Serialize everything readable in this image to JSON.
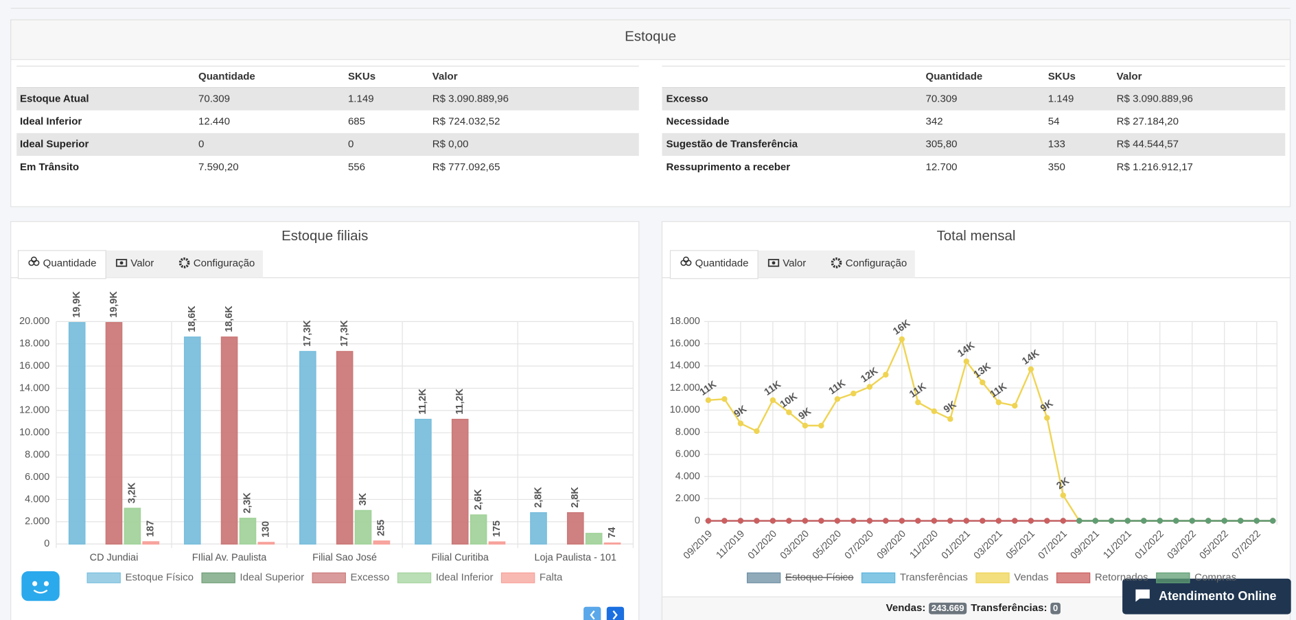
{
  "estoque": {
    "title": "Estoque",
    "tables": [
      {
        "columns": [
          "Quantidade",
          "SKUs",
          "Valor"
        ],
        "rows": [
          [
            "Estoque Atual",
            "70.309",
            "1.149",
            "R$ 3.090.889,96"
          ],
          [
            "Ideal Inferior",
            "12.440",
            "685",
            "R$ 724.032,52"
          ],
          [
            "Ideal Superior",
            "0",
            "0",
            "R$ 0,00"
          ],
          [
            "Em Trânsito",
            "7.590,20",
            "556",
            "R$ 777.092,65"
          ]
        ]
      },
      {
        "columns": [
          "Quantidade",
          "SKUs",
          "Valor"
        ],
        "rows": [
          [
            "Excesso",
            "70.309",
            "1.149",
            "R$ 3.090.889,96"
          ],
          [
            "Necessidade",
            "342",
            "54",
            "R$ 27.184,20"
          ],
          [
            "Sugestão de Transferência",
            "305,80",
            "133",
            "R$ 44.544,57"
          ],
          [
            "Ressuprimento a receber",
            "12.700",
            "350",
            "R$ 1.216.912,17"
          ]
        ]
      }
    ]
  },
  "panels": [
    {
      "title": "Estoque filiais",
      "tabs": [
        "Quantidade",
        "Valor",
        "Configuração"
      ]
    },
    {
      "title": "Total mensal",
      "tabs": [
        "Quantidade",
        "Valor",
        "Configuração"
      ]
    }
  ],
  "chart_data": [
    {
      "type": "bar",
      "categories": [
        "CD Jundiai",
        "FIlial Av. Paulista",
        "Filial Sao José",
        "Filial Curitiba",
        "Loja Paulista - 101"
      ],
      "series": [
        {
          "name": "Estoque Físico",
          "color": "#7bbfdd",
          "values": [
            19900,
            18600,
            17300,
            11200,
            2800
          ],
          "value_labels": [
            "19,9K",
            "18,6K",
            "17,3K",
            "11,2K",
            "2,8K"
          ]
        },
        {
          "name": "Ideal Superior",
          "color": "#6e9d75",
          "values": [
            0,
            0,
            0,
            0,
            0
          ]
        },
        {
          "name": "Excesso",
          "color": "#cc7a7a",
          "values": [
            19900,
            18600,
            17300,
            11200,
            2800
          ],
          "value_labels": [
            "19,9K",
            "18,6K",
            "17,3K",
            "11,2K",
            "2,8K"
          ]
        },
        {
          "name": "Ideal Inferior",
          "color": "#a3d39c",
          "values": [
            3200,
            2300,
            3000,
            2600,
            942
          ],
          "value_labels": [
            "3,2K",
            "2,3K",
            "3K",
            "2,6K",
            null
          ]
        },
        {
          "name": "Falta",
          "color": "#f7a19a",
          "values": [
            187,
            130,
            255,
            175,
            74
          ]
        }
      ],
      "ylim": [
        0,
        20000
      ],
      "yticks": [
        0,
        {
          "value": 2000,
          "label": "2.000"
        },
        {
          "value": 4000,
          "label": "4.000"
        },
        {
          "value": 6000,
          "label": "6.000"
        },
        {
          "value": 8000,
          "label": "8.000"
        },
        {
          "value": 10000,
          "label": "10.000"
        },
        {
          "value": 12000,
          "label": "12.000"
        },
        {
          "value": 14000,
          "label": "14.000"
        },
        {
          "value": 16000,
          "label": "16.000"
        },
        {
          "value": 18000,
          "label": "18.000"
        },
        {
          "value": 20000,
          "label": "20.000"
        }
      ],
      "grid": true
    },
    {
      "type": "line",
      "categories": [
        "09/2019",
        null,
        "11/2019",
        null,
        "01/2020",
        null,
        "03/2020",
        null,
        "05/2020",
        null,
        "07/2020",
        null,
        "09/2020",
        null,
        "11/2020",
        null,
        "01/2021",
        null,
        "03/2021",
        null,
        "05/2021",
        null,
        "07/2021",
        null,
        "09/2021",
        null,
        "11/2021",
        null,
        "01/2022",
        null,
        "03/2022",
        null,
        "05/2022",
        null,
        "07/2022",
        null
      ],
      "series": [
        {
          "name": "Estoque Físico",
          "color": "#6c8ea3",
          "hidden": true,
          "values": [
            null,
            null,
            null,
            null,
            null,
            null,
            null,
            null,
            null,
            null,
            null,
            null,
            null,
            null,
            null,
            null,
            null,
            null,
            null,
            null,
            null,
            null,
            null,
            null,
            null,
            null,
            null,
            null,
            null,
            null,
            null,
            null,
            null,
            null,
            null,
            null
          ]
        },
        {
          "name": "Transferências",
          "color": "#5ab4dc",
          "values": [
            0,
            0,
            0,
            0,
            0,
            0,
            0,
            0,
            0,
            0,
            0,
            0,
            0,
            0,
            0,
            0,
            0,
            0,
            0,
            0,
            0,
            0,
            0,
            0,
            0,
            0,
            0,
            0,
            0,
            0,
            0,
            0,
            0,
            0,
            0,
            0
          ]
        },
        {
          "name": "Vendas",
          "color": "#efd453",
          "values": [
            10900,
            11000,
            8800,
            8100,
            10900,
            9800,
            8600,
            8600,
            11000,
            11500,
            12100,
            13200,
            16400,
            10700,
            9900,
            9200,
            14400,
            12500,
            10700,
            10400,
            13700,
            9300,
            2300,
            0,
            0,
            0,
            0,
            0,
            0,
            0,
            0,
            0,
            0,
            0,
            0,
            0
          ],
          "value_labels": [
            "11K",
            null,
            "9K",
            null,
            "11K",
            "10K",
            "9K",
            null,
            "11K",
            null,
            "12K",
            null,
            "16K",
            "11K",
            null,
            "9K",
            "14K",
            "13K",
            "11K",
            null,
            "14K",
            "9K",
            "2K",
            null,
            null,
            null,
            null,
            null,
            null,
            null,
            null,
            null,
            null,
            null,
            null,
            null
          ]
        },
        {
          "name": "Retornados",
          "color": "#cc5f5f",
          "values": [
            0,
            0,
            0,
            0,
            0,
            0,
            0,
            0,
            0,
            0,
            0,
            0,
            0,
            0,
            0,
            0,
            0,
            0,
            0,
            0,
            0,
            0,
            0,
            0,
            0,
            0,
            0,
            0,
            0,
            0,
            0,
            0,
            0,
            0,
            0,
            0
          ]
        },
        {
          "name": "Compras",
          "color": "#5f9e73",
          "values": [
            null,
            null,
            null,
            null,
            null,
            null,
            null,
            null,
            null,
            null,
            null,
            null,
            null,
            null,
            null,
            null,
            null,
            null,
            null,
            null,
            null,
            null,
            null,
            0,
            0,
            0,
            0,
            0,
            0,
            0,
            0,
            0,
            0,
            0,
            0,
            0
          ]
        }
      ],
      "ylim": [
        0,
        18000
      ],
      "yticks": [
        0,
        {
          "value": 2000,
          "label": "2.000"
        },
        {
          "value": 4000,
          "label": "4.000"
        },
        {
          "value": 6000,
          "label": "6.000"
        },
        {
          "value": 8000,
          "label": "8.000"
        },
        {
          "value": 10000,
          "label": "10.000"
        },
        {
          "value": 12000,
          "label": "12.000"
        },
        {
          "value": 14000,
          "label": "14.000"
        },
        {
          "value": 16000,
          "label": "16.000"
        },
        {
          "value": 18000,
          "label": "18.000"
        }
      ],
      "grid": true
    }
  ],
  "totals": [
    {
      "label": "Vendas:",
      "value": "243.669"
    },
    {
      "label": "Transferências:",
      "value": "0"
    }
  ],
  "chat_button": "Atendimento Online"
}
